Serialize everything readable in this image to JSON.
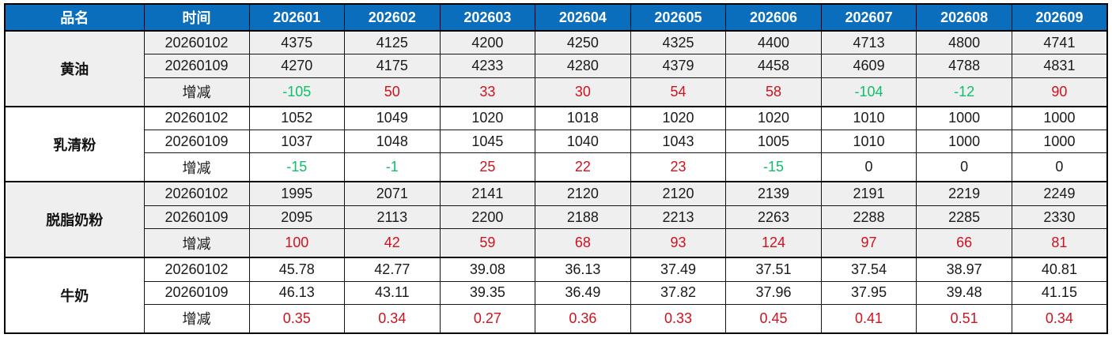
{
  "table": {
    "header": {
      "product": "品名",
      "time": "时间",
      "periods": [
        "202601",
        "202602",
        "202603",
        "202604",
        "202605",
        "202606",
        "202607",
        "202608",
        "202609"
      ]
    },
    "groups": [
      {
        "name": "黄油",
        "rows": [
          {
            "label": "20260102",
            "type": "value",
            "values": [
              "4375",
              "4125",
              "4200",
              "4250",
              "4325",
              "4400",
              "4713",
              "4800",
              "4741"
            ]
          },
          {
            "label": "20260109",
            "type": "value",
            "values": [
              "4270",
              "4175",
              "4233",
              "4280",
              "4379",
              "4458",
              "4609",
              "4788",
              "4831"
            ]
          },
          {
            "label": "增减",
            "type": "change",
            "values": [
              "-105",
              "50",
              "33",
              "30",
              "54",
              "58",
              "-104",
              "-12",
              "90"
            ]
          }
        ]
      },
      {
        "name": "乳清粉",
        "rows": [
          {
            "label": "20260102",
            "type": "value",
            "values": [
              "1052",
              "1049",
              "1020",
              "1018",
              "1020",
              "1020",
              "1010",
              "1000",
              "1000"
            ]
          },
          {
            "label": "20260109",
            "type": "value",
            "values": [
              "1037",
              "1048",
              "1045",
              "1040",
              "1043",
              "1005",
              "1010",
              "1000",
              "1000"
            ]
          },
          {
            "label": "增减",
            "type": "change",
            "values": [
              "-15",
              "-1",
              "25",
              "22",
              "23",
              "-15",
              "0",
              "0",
              "0"
            ]
          }
        ]
      },
      {
        "name": "脱脂奶粉",
        "rows": [
          {
            "label": "20260102",
            "type": "value",
            "values": [
              "1995",
              "2071",
              "2141",
              "2120",
              "2120",
              "2139",
              "2191",
              "2219",
              "2249"
            ]
          },
          {
            "label": "20260109",
            "type": "value",
            "values": [
              "2095",
              "2113",
              "2200",
              "2188",
              "2213",
              "2263",
              "2288",
              "2285",
              "2330"
            ]
          },
          {
            "label": "增减",
            "type": "change",
            "values": [
              "100",
              "42",
              "59",
              "68",
              "93",
              "124",
              "97",
              "66",
              "81"
            ]
          }
        ]
      },
      {
        "name": "牛奶",
        "rows": [
          {
            "label": "20260102",
            "type": "value",
            "values": [
              "45.78",
              "42.77",
              "39.08",
              "36.13",
              "37.49",
              "37.51",
              "37.54",
              "38.97",
              "40.81"
            ]
          },
          {
            "label": "20260109",
            "type": "value",
            "values": [
              "46.13",
              "43.11",
              "39.35",
              "36.49",
              "37.82",
              "37.96",
              "37.95",
              "39.48",
              "41.15"
            ]
          },
          {
            "label": "增减",
            "type": "change",
            "values": [
              "0.35",
              "0.34",
              "0.27",
              "0.36",
              "0.33",
              "0.45",
              "0.41",
              "0.51",
              "0.34"
            ]
          }
        ]
      }
    ]
  },
  "colors": {
    "header_bg": "#0a6ebd",
    "header_text": "#ffffff",
    "positive_change": "#d0121f",
    "negative_change": "#0ec06a",
    "zero_change": "#1a1a1a",
    "group_alt_bg": "#efefef",
    "group_plain_bg": "#ffffff",
    "border": "#000000"
  },
  "chart_data": {
    "type": "table",
    "columns": [
      "品名",
      "时间",
      "202601",
      "202602",
      "202603",
      "202604",
      "202605",
      "202606",
      "202607",
      "202608",
      "202609"
    ],
    "rows": [
      [
        "黄油",
        "20260102",
        4375,
        4125,
        4200,
        4250,
        4325,
        4400,
        4713,
        4800,
        4741
      ],
      [
        "黄油",
        "20260109",
        4270,
        4175,
        4233,
        4280,
        4379,
        4458,
        4609,
        4788,
        4831
      ],
      [
        "黄油",
        "增减",
        -105,
        50,
        33,
        30,
        54,
        58,
        -104,
        -12,
        90
      ],
      [
        "乳清粉",
        "20260102",
        1052,
        1049,
        1020,
        1018,
        1020,
        1020,
        1010,
        1000,
        1000
      ],
      [
        "乳清粉",
        "20260109",
        1037,
        1048,
        1045,
        1040,
        1043,
        1005,
        1010,
        1000,
        1000
      ],
      [
        "乳清粉",
        "增减",
        -15,
        -1,
        25,
        22,
        23,
        -15,
        0,
        0,
        0
      ],
      [
        "脱脂奶粉",
        "20260102",
        1995,
        2071,
        2141,
        2120,
        2120,
        2139,
        2191,
        2219,
        2249
      ],
      [
        "脱脂奶粉",
        "20260109",
        2095,
        2113,
        2200,
        2188,
        2213,
        2263,
        2288,
        2285,
        2330
      ],
      [
        "脱脂奶粉",
        "增减",
        100,
        42,
        59,
        68,
        93,
        124,
        97,
        66,
        81
      ],
      [
        "牛奶",
        "20260102",
        45.78,
        42.77,
        39.08,
        36.13,
        37.49,
        37.51,
        37.54,
        38.97,
        40.81
      ],
      [
        "牛奶",
        "20260109",
        46.13,
        43.11,
        39.35,
        36.49,
        37.82,
        37.96,
        37.95,
        39.48,
        41.15
      ],
      [
        "牛奶",
        "增减",
        0.35,
        0.34,
        0.27,
        0.36,
        0.33,
        0.45,
        0.41,
        0.51,
        0.34
      ]
    ]
  }
}
